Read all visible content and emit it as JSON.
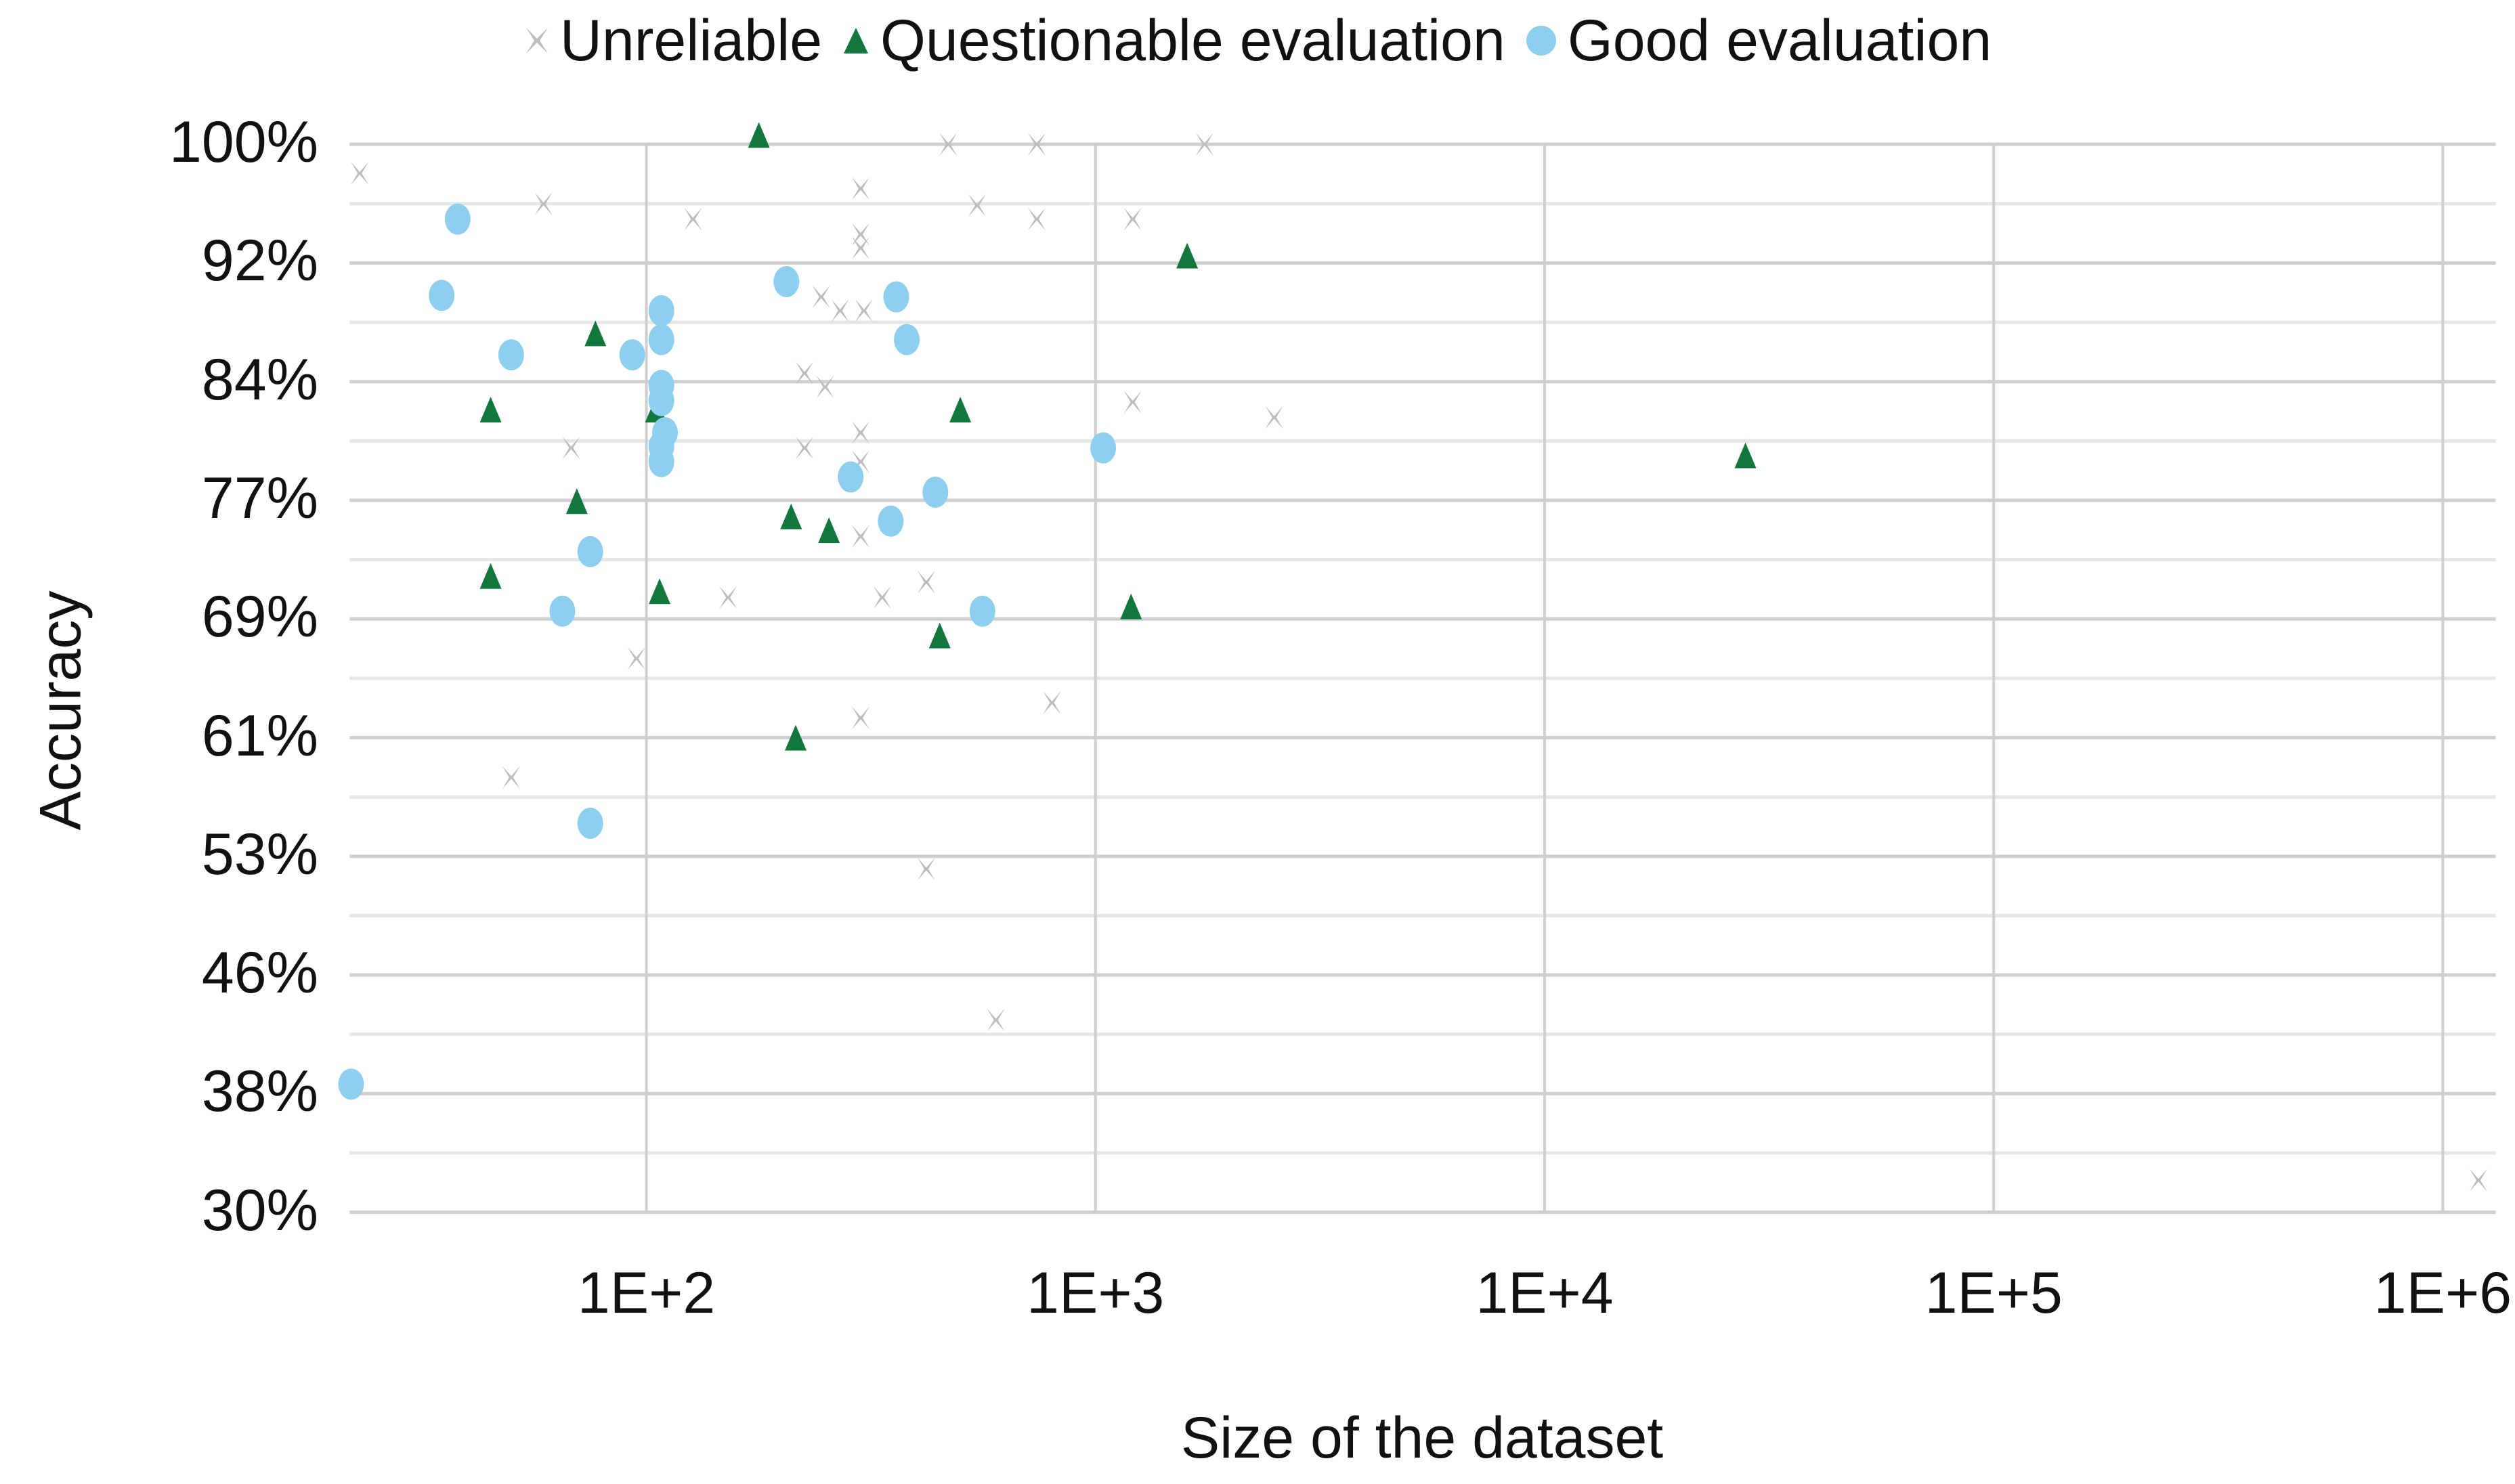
{
  "chart_data": {
    "type": "scatter",
    "title": "",
    "xlabel": "Size of the dataset",
    "ylabel": "Accuracy",
    "xscale": "log",
    "xlim": [
      22,
      1500000
    ],
    "ylim": [
      30,
      100
    ],
    "x_tick_labels": [
      "1E+2",
      "1E+3",
      "1E+4",
      "1E+5",
      "1E+6"
    ],
    "x_tick_values": [
      100,
      1000,
      10000,
      100000,
      1000000
    ],
    "y_tick_labels": [
      "100%",
      "92%",
      "84%",
      "77%",
      "69%",
      "61%",
      "53%",
      "46%",
      "38%",
      "30%"
    ],
    "y_tick_values": [
      100,
      92.2,
      84.4,
      76.7,
      68.9,
      61.1,
      53.3,
      45.6,
      37.8,
      30
    ],
    "grid": true,
    "legend_position": "top",
    "series": [
      {
        "name": "Unreliable",
        "marker": "x",
        "color": "#BDBDBD",
        "points": [
          [
            23,
            98.1
          ],
          [
            59,
            96.1
          ],
          [
            127,
            95.1
          ],
          [
            300,
            97.1
          ],
          [
            300,
            94.1
          ],
          [
            300,
            93.2
          ],
          [
            470,
            100
          ],
          [
            740,
            100
          ],
          [
            1750,
            100
          ],
          [
            545,
            96.0
          ],
          [
            740,
            95.1
          ],
          [
            1210,
            95.1
          ],
          [
            245,
            90.0
          ],
          [
            270,
            89.1
          ],
          [
            305,
            89.1
          ],
          [
            225,
            85.0
          ],
          [
            250,
            84.1
          ],
          [
            1210,
            83.1
          ],
          [
            2500,
            82.1
          ],
          [
            68,
            80.1
          ],
          [
            225,
            80.1
          ],
          [
            300,
            81.1
          ],
          [
            300,
            79.2
          ],
          [
            300,
            74.3
          ],
          [
            152,
            70.3
          ],
          [
            335,
            70.3
          ],
          [
            420,
            71.3
          ],
          [
            95,
            66.3
          ],
          [
            800,
            63.4
          ],
          [
            300,
            62.4
          ],
          [
            50,
            58.5
          ],
          [
            420,
            52.5
          ],
          [
            600,
            42.6
          ],
          [
            1200000,
            32.1
          ]
        ]
      },
      {
        "name": "Questionable evaluation",
        "marker": "triangle",
        "color": "#11773D",
        "points": [
          [
            178,
            100.3
          ],
          [
            1600,
            92.4
          ],
          [
            77,
            87.3
          ],
          [
            45,
            82.3
          ],
          [
            105,
            82.3
          ],
          [
            500,
            82.3
          ],
          [
            28000,
            79.3
          ],
          [
            70,
            76.3
          ],
          [
            210,
            75.3
          ],
          [
            255,
            74.4
          ],
          [
            45,
            71.4
          ],
          [
            107,
            70.4
          ],
          [
            1200,
            69.4
          ],
          [
            450,
            67.5
          ],
          [
            215,
            60.8
          ]
        ]
      },
      {
        "name": "Good evaluation",
        "marker": "circle",
        "color": "#8ECFEF",
        "points": [
          [
            38,
            95.1
          ],
          [
            35,
            90.1
          ],
          [
            50,
            86.2
          ],
          [
            93,
            86.2
          ],
          [
            108,
            89.1
          ],
          [
            108,
            87.2
          ],
          [
            108,
            84.2
          ],
          [
            108,
            83.2
          ],
          [
            110,
            81.1
          ],
          [
            108,
            80.2
          ],
          [
            108,
            79.2
          ],
          [
            205,
            91.0
          ],
          [
            360,
            90.0
          ],
          [
            380,
            87.2
          ],
          [
            1040,
            80.1
          ],
          [
            285,
            78.2
          ],
          [
            440,
            77.2
          ],
          [
            350,
            75.3
          ],
          [
            75,
            73.3
          ],
          [
            65,
            69.4
          ],
          [
            560,
            69.4
          ],
          [
            75,
            55.5
          ],
          [
            22,
            38.4
          ]
        ]
      }
    ]
  },
  "legend": {
    "items": [
      {
        "label": "Unreliable",
        "icon": "x-marker-icon",
        "color": "#BDBDBD"
      },
      {
        "label": "Questionable evaluation",
        "icon": "triangle-marker-icon",
        "color": "#11773D"
      },
      {
        "label": "Good evaluation",
        "icon": "circle-marker-icon",
        "color": "#8ECFEF"
      }
    ]
  },
  "axes": {
    "x_title": "Size of the dataset",
    "y_title": "Accuracy"
  },
  "colors": {
    "grid_major": "#CFCFCF",
    "grid_minor": "#E6E6E6",
    "text": "#111111"
  }
}
